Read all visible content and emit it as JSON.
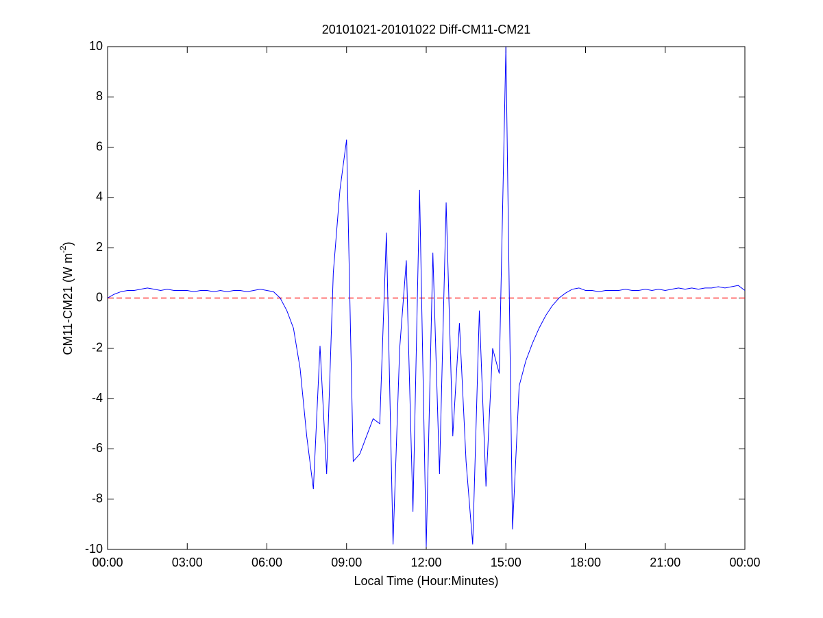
{
  "chart_data": {
    "type": "line",
    "title": "20101021-20101022 Diff-CM11-CM21",
    "xlabel": "Local Time (Hour:Minutes)",
    "ylabel": {
      "text": "CM11-CM21 (W m",
      "superscript": "-2",
      "suffix": ")"
    },
    "x": [
      0,
      0.25,
      0.5,
      0.75,
      1,
      1.25,
      1.5,
      1.75,
      2,
      2.25,
      2.5,
      2.75,
      3,
      3.25,
      3.5,
      3.75,
      4,
      4.25,
      4.5,
      4.75,
      5,
      5.25,
      5.5,
      5.75,
      6,
      6.25,
      6.5,
      6.75,
      7,
      7.25,
      7.5,
      7.75,
      8,
      8.25,
      8.5,
      8.75,
      9,
      9.25,
      9.5,
      9.75,
      10,
      10.25,
      10.5,
      10.75,
      11,
      11.25,
      11.5,
      11.75,
      12,
      12.25,
      12.5,
      12.75,
      13,
      13.25,
      13.5,
      13.75,
      14,
      14.25,
      14.5,
      14.75,
      15,
      15.25,
      15.5,
      15.75,
      16,
      16.25,
      16.5,
      16.75,
      17,
      17.25,
      17.5,
      17.75,
      18,
      18.25,
      18.5,
      18.75,
      19,
      19.25,
      19.5,
      19.75,
      20,
      20.25,
      20.5,
      20.75,
      21,
      21.25,
      21.5,
      21.75,
      22,
      22.25,
      22.5,
      22.75,
      23,
      23.25,
      23.5,
      23.75,
      24
    ],
    "series": [
      {
        "name": "Diff",
        "color": "#0000ff",
        "values": [
          0.0,
          0.15,
          0.25,
          0.3,
          0.3,
          0.35,
          0.4,
          0.35,
          0.3,
          0.35,
          0.3,
          0.3,
          0.3,
          0.25,
          0.3,
          0.3,
          0.25,
          0.3,
          0.25,
          0.3,
          0.3,
          0.25,
          0.3,
          0.35,
          0.3,
          0.25,
          0.0,
          -0.5,
          -1.2,
          -2.8,
          -5.5,
          -7.6,
          -1.9,
          -7,
          1.0,
          4.3,
          6.3,
          -6.5,
          -6.2,
          -5.5,
          -4.8,
          -5,
          2.6,
          -9.8,
          -2,
          1.5,
          -8.5,
          4.3,
          -9.9,
          1.8,
          -7,
          3.8,
          -5.5,
          -1,
          -6.5,
          -9.8,
          -0.5,
          -7.5,
          -2,
          -3,
          10,
          -9.2,
          -3.5,
          -2.5,
          -1.8,
          -1.2,
          -0.7,
          -0.3,
          0.0,
          0.2,
          0.35,
          0.4,
          0.3,
          0.3,
          0.25,
          0.3,
          0.3,
          0.3,
          0.35,
          0.3,
          0.3,
          0.35,
          0.3,
          0.35,
          0.3,
          0.35,
          0.4,
          0.35,
          0.4,
          0.35,
          0.4,
          0.4,
          0.45,
          0.4,
          0.45,
          0.5,
          0.3
        ]
      }
    ],
    "reference_line": {
      "value": 0,
      "color": "#ff0000"
    },
    "xlim": [
      0,
      24
    ],
    "xticks": [
      {
        "value": 0,
        "label": "00:00"
      },
      {
        "value": 3,
        "label": "03:00"
      },
      {
        "value": 6,
        "label": "06:00"
      },
      {
        "value": 9,
        "label": "09:00"
      },
      {
        "value": 12,
        "label": "12:00"
      },
      {
        "value": 15,
        "label": "15:00"
      },
      {
        "value": 18,
        "label": "18:00"
      },
      {
        "value": 21,
        "label": "21:00"
      },
      {
        "value": 24,
        "label": "00:00"
      }
    ],
    "ylim": [
      -10,
      10
    ],
    "yticks": [
      -10,
      -8,
      -6,
      -4,
      -2,
      0,
      2,
      4,
      6,
      8,
      10
    ],
    "grid": false
  }
}
